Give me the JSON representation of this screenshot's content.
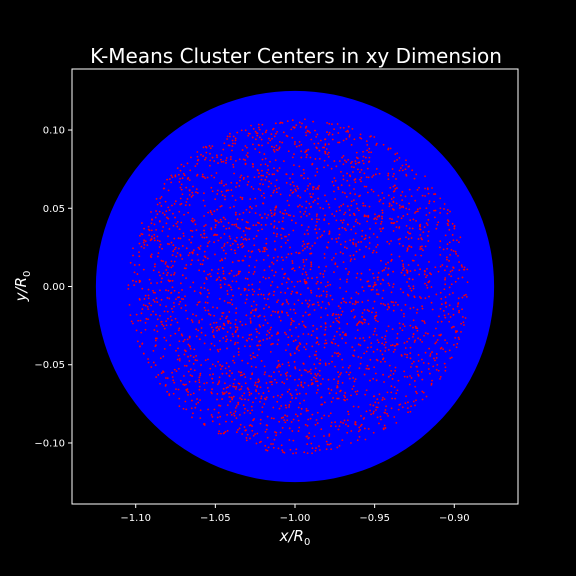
{
  "chart_data": {
    "type": "scatter",
    "title": "K-Means Cluster Centers in xy Dimension",
    "xlabel": {
      "main": "x/R",
      "sub": "0"
    },
    "ylabel": {
      "main": "y/R",
      "sub": "0"
    },
    "xlim": [
      -1.14,
      -0.86
    ],
    "ylim": [
      -0.139,
      0.139
    ],
    "xticks": [
      -1.1,
      -1.05,
      -1.0,
      -0.95,
      -0.9
    ],
    "xtick_labels": [
      "−1.10",
      "−1.05",
      "−1.00",
      "−0.95",
      "−0.90"
    ],
    "yticks": [
      0.1,
      0.05,
      0.0,
      -0.05,
      -0.1
    ],
    "ytick_labels": [
      "0.10",
      "0.05",
      "0.00",
      "−0.05",
      "−0.10"
    ],
    "grid": false,
    "legend": "none",
    "background_color": "#000000",
    "axes_color": "#ffffff",
    "series": [
      {
        "kind": "filled-disk",
        "color": "#0000ff",
        "center": [
          -1.0,
          0.0
        ],
        "radius": 0.125
      },
      {
        "kind": "points",
        "color": "#ff0000",
        "count": 3000,
        "distribution": "uniform-in-disk",
        "center": [
          -0.998,
          0.0
        ],
        "radius": 0.107
      }
    ]
  }
}
